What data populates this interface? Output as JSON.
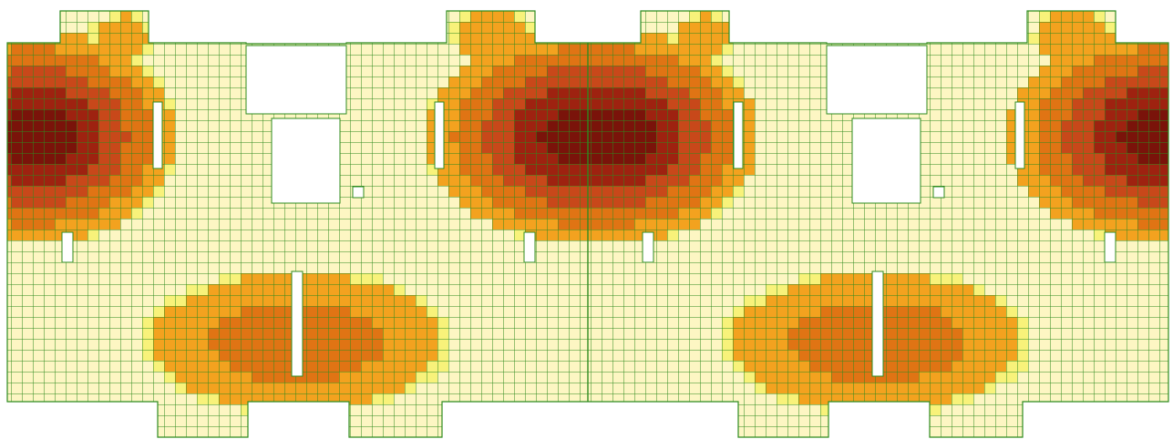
{
  "view": {
    "type": "fem-slab-contour",
    "caption": "",
    "legend": null
  },
  "colors": {
    "background": "#ffffff",
    "mesh_line": "#2e8b1e",
    "band_0": "#fdf6c3",
    "band_1": "#f8f27a",
    "band_2": "#f3a21f",
    "band_3": "#e07414",
    "band_4": "#c8481a",
    "band_5": "#9e2210",
    "band_6": "#7a130a"
  },
  "band_order": [
    "band_0",
    "band_1",
    "band_2",
    "band_3",
    "band_4",
    "band_5",
    "band_6"
  ],
  "halves": 2,
  "mirror_note": ""
}
